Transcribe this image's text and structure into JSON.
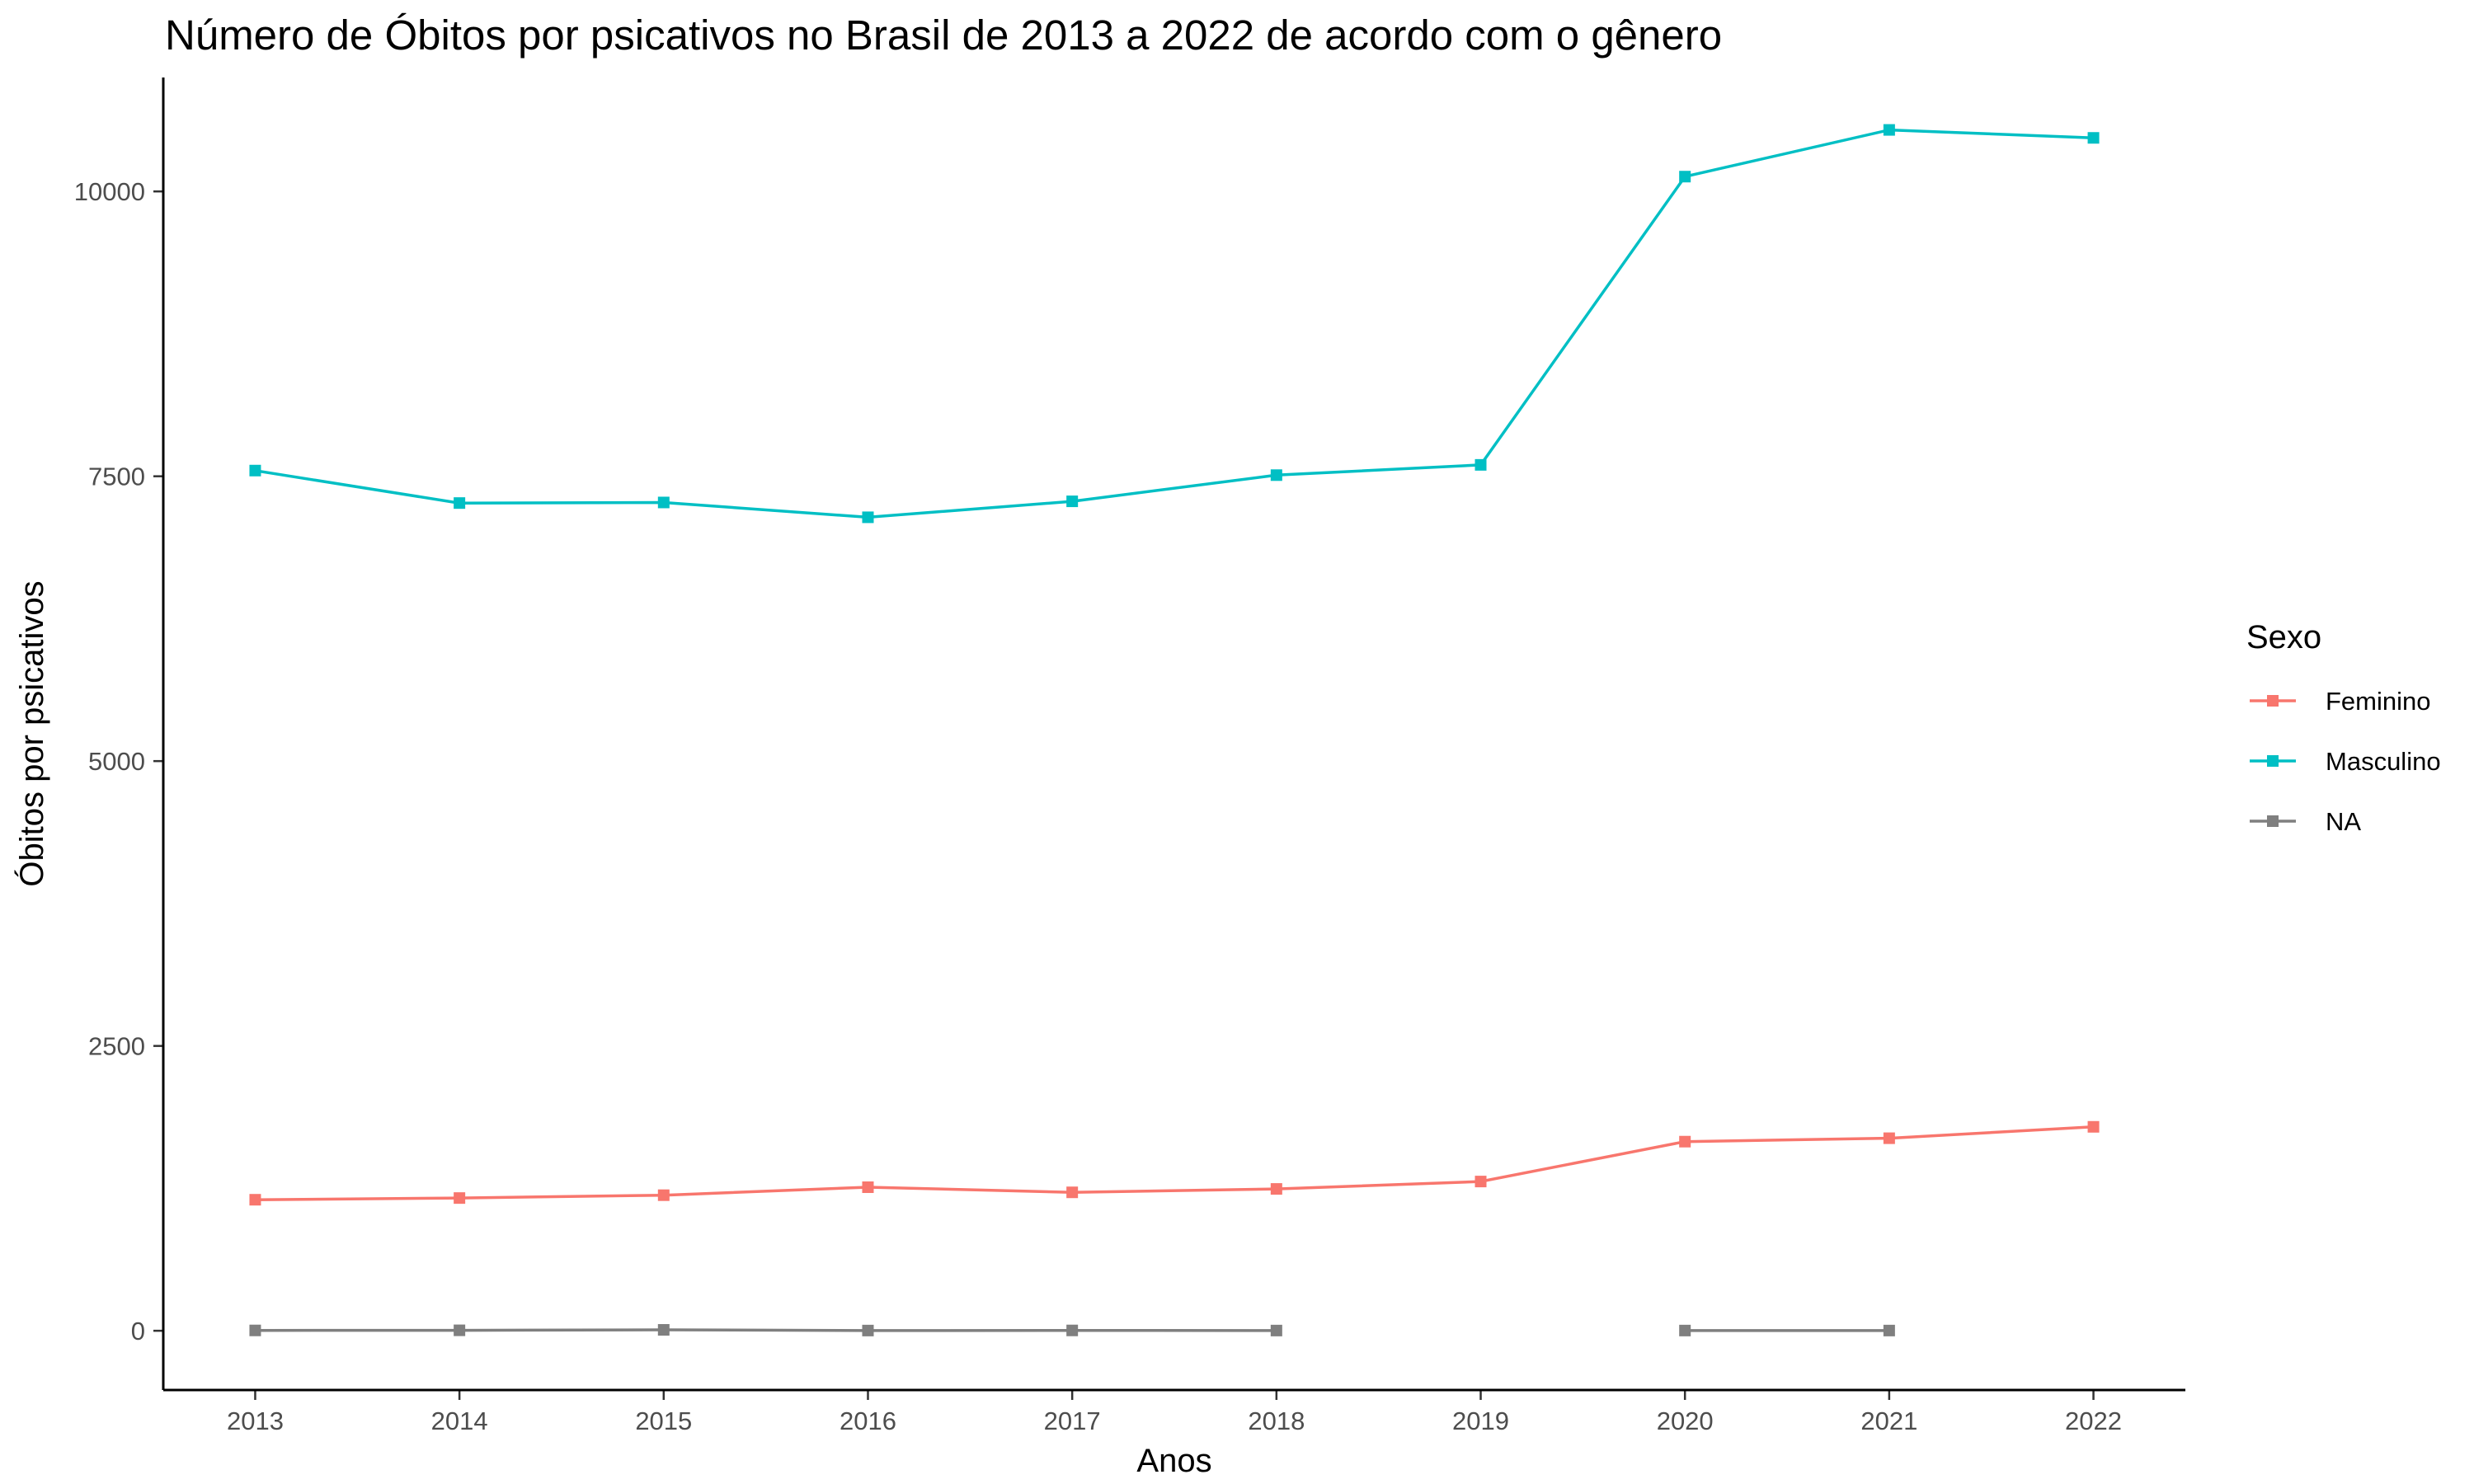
{
  "chart_data": {
    "type": "line",
    "title": "Número de Óbitos por psicativos no Brasil de 2013 a 2022 de acordo com o gênero",
    "xlabel": "Anos",
    "ylabel": "Óbitos por psicativos",
    "x": [
      2013,
      2014,
      2015,
      2016,
      2017,
      2018,
      2019,
      2020,
      2021,
      2022
    ],
    "x_ticks": [
      "2013",
      "2014",
      "2015",
      "2016",
      "2017",
      "2018",
      "2019",
      "2020",
      "2021",
      "2022"
    ],
    "y_ticks": [
      "0",
      "2500",
      "5000",
      "7500",
      "10000"
    ],
    "y_tick_values": [
      0,
      2500,
      5000,
      7500,
      10000
    ],
    "xlim": [
      2012.55,
      2022.45
    ],
    "ylim": [
      -520,
      11000
    ],
    "grid": false,
    "legend": {
      "title": "Sexo",
      "position": "right",
      "entries": [
        "Feminino",
        "Masculino",
        "NA"
      ]
    },
    "series": [
      {
        "name": "Feminino",
        "color": "#F8766D",
        "values": [
          1150,
          1165,
          1190,
          1260,
          1215,
          1245,
          1310,
          1660,
          1690,
          1790
        ]
      },
      {
        "name": "Masculino",
        "color": "#00BFC4",
        "values": [
          7550,
          7265,
          7270,
          7140,
          7280,
          7510,
          7600,
          10130,
          10540,
          10470
        ]
      },
      {
        "name": "NA",
        "color": "#7F7F7F",
        "values": [
          3,
          4,
          8,
          2,
          3,
          2,
          null,
          2,
          2,
          null
        ]
      }
    ]
  }
}
